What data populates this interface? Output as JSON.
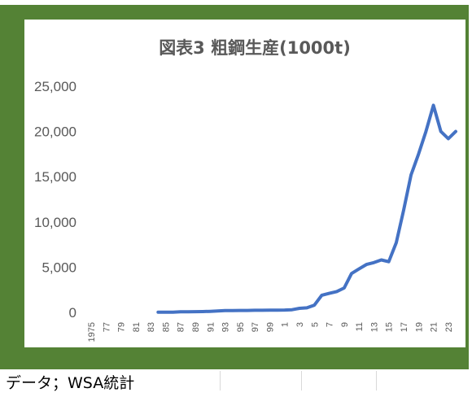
{
  "source_note": "データ；WSA統計",
  "colors": {
    "frame": "#548235",
    "line": "#4472c4",
    "text": "#595959"
  },
  "chart_data": {
    "type": "line",
    "title": "図表3 粗鋼生産(1000t)",
    "xlabel": "",
    "ylabel": "",
    "ylim": [
      0,
      25000
    ],
    "yticks": [
      0,
      5000,
      10000,
      15000,
      20000,
      25000
    ],
    "ytick_labels": [
      "0",
      "5,000",
      "10,000",
      "15,000",
      "20,000",
      "25,000"
    ],
    "grid": false,
    "legend": "none",
    "x_tick_labels": [
      "1975",
      "77",
      "79",
      "81",
      "83",
      "85",
      "87",
      "89",
      "91",
      "93",
      "95",
      "97",
      "99",
      "1",
      "3",
      "5",
      "7",
      "9",
      "11",
      "13",
      "15",
      "17",
      "19",
      "21",
      "23"
    ],
    "x": [
      1984,
      1985,
      1986,
      1987,
      1988,
      1989,
      1990,
      1991,
      1992,
      1993,
      1994,
      1995,
      1996,
      1997,
      1998,
      1999,
      2000,
      2001,
      2002,
      2003,
      2004,
      2005,
      2006,
      2007,
      2008,
      2009,
      2010,
      2011,
      2012,
      2013,
      2014,
      2015,
      2016,
      2017,
      2018,
      2019,
      2020,
      2021,
      2022,
      2023,
      2024
    ],
    "series": [
      {
        "values": [
          20,
          20,
          30,
          60,
          70,
          80,
          90,
          120,
          150,
          200,
          210,
          220,
          220,
          230,
          230,
          240,
          250,
          260,
          300,
          450,
          500,
          800,
          1900,
          2100,
          2300,
          2700,
          4300,
          4800,
          5300,
          5500,
          5800,
          5600,
          7700,
          11300,
          15200,
          17500,
          20000,
          22900,
          20000,
          19200,
          20000
        ]
      }
    ]
  }
}
